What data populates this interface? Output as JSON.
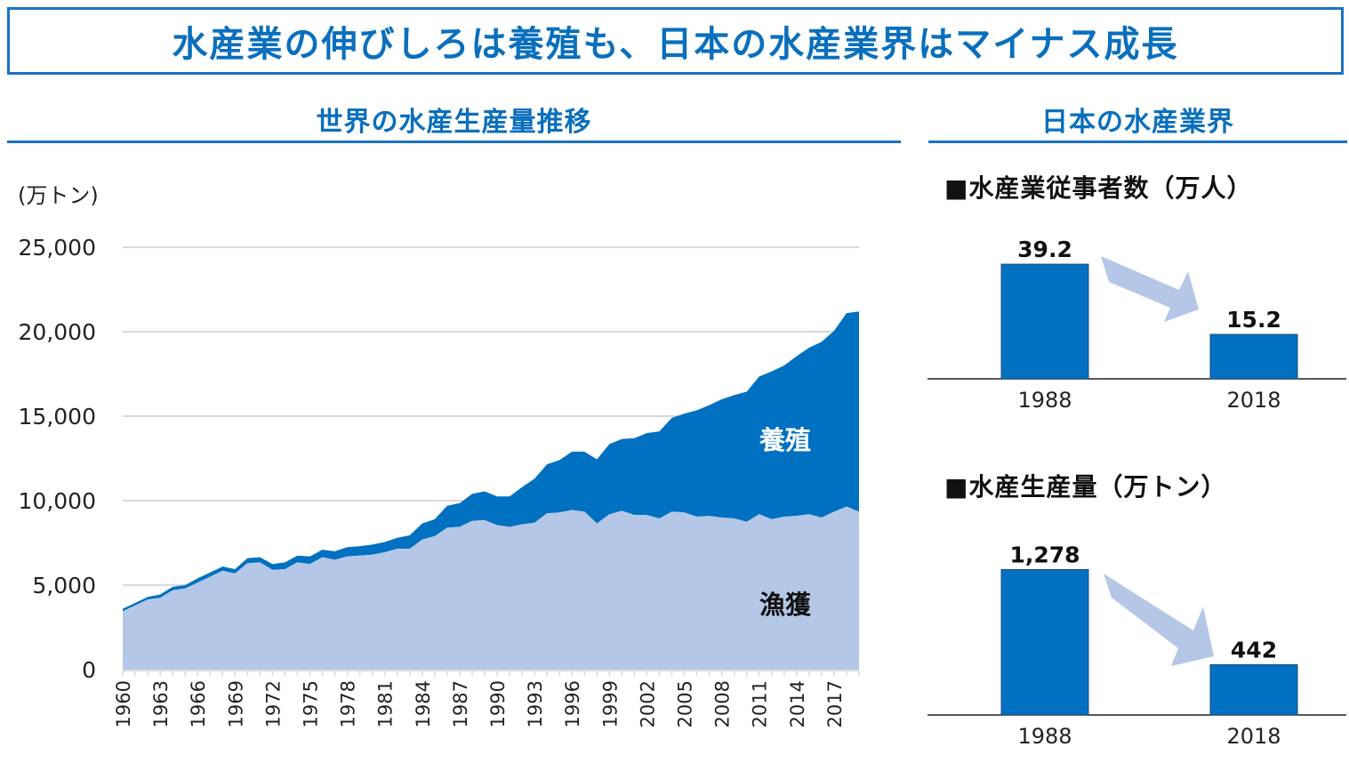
{
  "headline": "水産業の伸びしろは養殖も、日本の水産業界はマイナス成長",
  "left_section": {
    "title": "世界の水産生産量推移"
  },
  "right_section": {
    "title": "日本の水産業界"
  },
  "colors": {
    "accent": "#0a6fbd",
    "aquaculture": "#0070c0",
    "capture": "#b4c7e7",
    "arrow": "#b4c7e7",
    "bar": "#0070c0",
    "grid": "#d9d9d9"
  },
  "chart_data": [
    {
      "type": "area",
      "stacked": true,
      "title": "世界の水産生産量推移",
      "ylabel": "(万トン)",
      "xlabel": "",
      "ylim": [
        0,
        25000
      ],
      "yticks": [
        0,
        5000,
        10000,
        15000,
        20000,
        25000
      ],
      "ytick_labels": [
        "0",
        "5,000",
        "10,000",
        "15,000",
        "20,000",
        "25,000"
      ],
      "grid": true,
      "x": [
        1960,
        1961,
        1962,
        1963,
        1964,
        1965,
        1966,
        1967,
        1968,
        1969,
        1970,
        1971,
        1972,
        1973,
        1974,
        1975,
        1976,
        1977,
        1978,
        1979,
        1980,
        1981,
        1982,
        1983,
        1984,
        1985,
        1986,
        1987,
        1988,
        1989,
        1990,
        1991,
        1992,
        1993,
        1994,
        1995,
        1996,
        1997,
        1998,
        1999,
        2000,
        2001,
        2002,
        2003,
        2004,
        2005,
        2006,
        2007,
        2008,
        2009,
        2010,
        2011,
        2012,
        2013,
        2014,
        2015,
        2016,
        2017,
        2018,
        2019
      ],
      "xtick_labels": [
        "1960",
        "1963",
        "1966",
        "1969",
        "1972",
        "1975",
        "1978",
        "1981",
        "1984",
        "1987",
        "1990",
        "1993",
        "1996",
        "1999",
        "2002",
        "2005",
        "2008",
        "2011",
        "2014",
        "2017"
      ],
      "series": [
        {
          "name": "漁獲",
          "values": [
            3450,
            3800,
            4150,
            4250,
            4700,
            4800,
            5150,
            5500,
            5850,
            5700,
            6300,
            6350,
            5900,
            5950,
            6350,
            6250,
            6650,
            6500,
            6700,
            6750,
            6800,
            6950,
            7150,
            7150,
            7700,
            7900,
            8400,
            8450,
            8800,
            8850,
            8550,
            8450,
            8600,
            8700,
            9250,
            9300,
            9450,
            9350,
            8650,
            9200,
            9400,
            9150,
            9150,
            8950,
            9350,
            9300,
            9050,
            9100,
            9000,
            8950,
            8750,
            9200,
            8900,
            9050,
            9100,
            9200,
            9000,
            9350,
            9650,
            9350
          ]
        },
        {
          "name": "養殖",
          "values": [
            150,
            150,
            150,
            200,
            200,
            200,
            250,
            250,
            250,
            250,
            300,
            300,
            350,
            400,
            400,
            450,
            450,
            500,
            550,
            550,
            600,
            600,
            650,
            800,
            950,
            1000,
            1300,
            1400,
            1600,
            1700,
            1700,
            1800,
            2200,
            2600,
            2900,
            3100,
            3450,
            3550,
            3800,
            4150,
            4250,
            4550,
            4850,
            5150,
            5550,
            5850,
            6300,
            6550,
            7000,
            7300,
            7700,
            8150,
            8750,
            8950,
            9450,
            9850,
            10400,
            10700,
            11450,
            11850
          ]
        }
      ],
      "annotations": [
        "養殖",
        "漁獲"
      ]
    },
    {
      "type": "bar",
      "title": "■水産業従事者数（万人）",
      "categories": [
        "1988",
        "2018"
      ],
      "values": [
        39.2,
        15.2
      ],
      "value_labels": [
        "39.2",
        "15.2"
      ],
      "ylim": [
        0,
        45
      ]
    },
    {
      "type": "bar",
      "title": "■水産生産量（万トン）",
      "categories": [
        "1988",
        "2018"
      ],
      "values": [
        1278,
        442
      ],
      "value_labels": [
        "1,278",
        "442"
      ],
      "ylim": [
        0,
        1500
      ]
    }
  ]
}
